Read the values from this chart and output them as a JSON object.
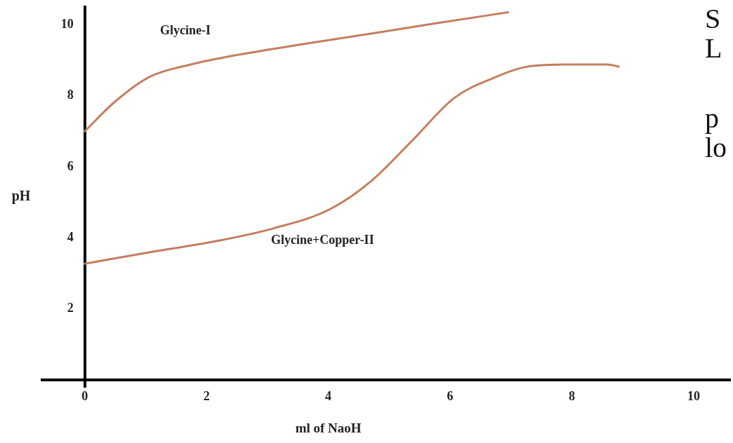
{
  "chart_data": {
    "type": "line",
    "xlabel": "ml of NaoH",
    "ylabel": "pH",
    "xlim": [
      -0.7,
      10.6
    ],
    "ylim": [
      -0.2,
      10.5
    ],
    "xticks": [
      0,
      2,
      4,
      6,
      8,
      10
    ],
    "yticks": [
      2,
      4,
      6,
      8,
      10
    ],
    "grid": false,
    "legend": false,
    "marker": "none",
    "line_style": "solid",
    "series": [
      {
        "name": "Glycine-I",
        "color": "#c47e5e",
        "x": [
          0,
          0.5,
          1.06,
          1.74,
          2.54,
          3.56,
          4.7,
          5.84,
          6.95
        ],
        "values": [
          7.0,
          7.84,
          8.53,
          8.88,
          9.16,
          9.45,
          9.75,
          10.06,
          10.35
        ]
      },
      {
        "name": "Glycine+Copper-II",
        "color": "#c47e5e",
        "x": [
          0,
          1.06,
          2.2,
          3.11,
          4.02,
          4.7,
          5.39,
          6.07,
          6.75,
          7.21,
          7.89,
          8.58,
          8.77
        ],
        "values": [
          3.27,
          3.59,
          3.92,
          4.27,
          4.8,
          5.59,
          6.76,
          7.94,
          8.53,
          8.8,
          8.88,
          8.88,
          8.82
        ]
      }
    ],
    "annotations": [
      "S",
      "L",
      "p",
      "lo"
    ]
  }
}
